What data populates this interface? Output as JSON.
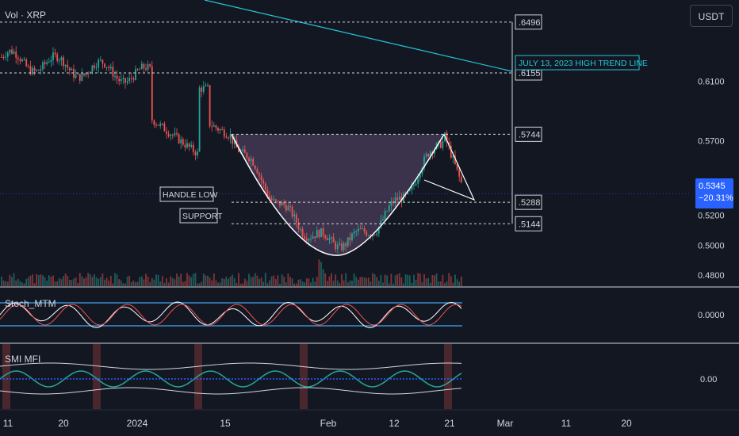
{
  "header": {
    "pane_title": "Vol · XRP",
    "currency_button": "USDT"
  },
  "indicators": {
    "stoch_title": "Stoch_MTM",
    "smi_title": "SMI MFI"
  },
  "last_price": {
    "price": "0.5345",
    "change": "−20.31%"
  },
  "colors": {
    "background": "#131722",
    "up_candle": "#26a69a",
    "down_candle": "#ef5350",
    "trend_line": "#26c6da",
    "cup_fill": "#5b4a6e",
    "price_tag": "#2962ff",
    "pane_separator": "#d1d4dc"
  },
  "chart_data": {
    "type": "candlestick",
    "title": "",
    "y_axis_ticks": [
      "0.6500",
      "0.6100",
      "0.5700",
      "0.5400",
      "0.5200",
      "0.5000",
      "0.4800"
    ],
    "ylim": [
      0.48,
      0.65
    ],
    "x_axis_ticks": [
      "11",
      "20",
      "2024",
      "15",
      "Feb",
      "12",
      "21",
      "Mar",
      "11",
      "20"
    ],
    "levels": [
      {
        "value": "0.6496",
        "label": ".6496"
      },
      {
        "value": "0.6155",
        "label": ".6155"
      },
      {
        "value": "0.5744",
        "label": ".5744"
      },
      {
        "value": "0.5288",
        "label": ".5288"
      },
      {
        "value": "0.5144",
        "label": ".5144"
      }
    ],
    "annotations": {
      "trend_line_label": "JULY 13, 2023 HIGH TREND LINE",
      "handle_low_label": "HANDLE LOW",
      "support_label": "SUPPORT"
    },
    "patterns": [
      "cup and handle"
    ],
    "indicator_ticks": {
      "stoch_mtm": "0.0000",
      "smi_mfi": "0.00"
    }
  }
}
